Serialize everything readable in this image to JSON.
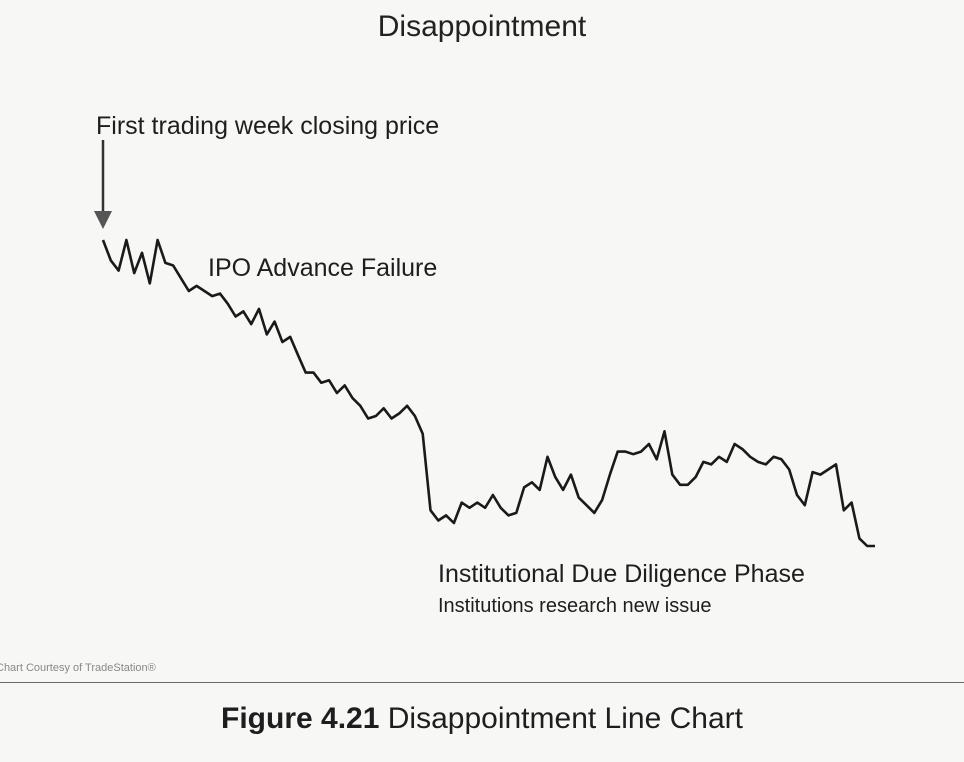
{
  "title": "Disappointment",
  "chart_data": {
    "type": "line",
    "title": "Disappointment",
    "xlabel": "",
    "ylabel": "",
    "grid": false,
    "values": [
      100,
      92,
      88,
      100,
      87,
      95,
      83,
      100,
      91,
      90,
      85,
      80,
      82,
      80,
      78,
      79,
      75,
      70,
      72,
      67,
      73,
      63,
      68,
      60,
      62,
      55,
      48,
      48,
      44,
      45,
      40,
      43,
      38,
      35,
      30,
      31,
      34,
      30,
      32,
      35,
      31,
      24,
      -6,
      -10,
      -8,
      -11,
      -3,
      -5,
      -3,
      -5,
      0,
      -5,
      -8,
      -7,
      3,
      5,
      2,
      15,
      7,
      2,
      8,
      -1,
      -4,
      -7,
      -2,
      8,
      17,
      17,
      16,
      17,
      20,
      14,
      25,
      8,
      4,
      4,
      7,
      13,
      12,
      15,
      13,
      20,
      18,
      15,
      13,
      12,
      15,
      14,
      10,
      0,
      -4,
      9,
      8,
      10,
      12,
      -6,
      -3,
      -17,
      -20,
      -20
    ]
  },
  "annotations": {
    "first_week": "First trading week closing price",
    "ipo_failure": "IPO Advance Failure",
    "due_diligence": "Institutional Due Diligence Phase",
    "research": "Institutions research new issue"
  },
  "credit": "Chart Courtesy of TradeStation®",
  "caption": {
    "figure_number": "Figure 4.21",
    "text": "Disappointment Line Chart"
  }
}
